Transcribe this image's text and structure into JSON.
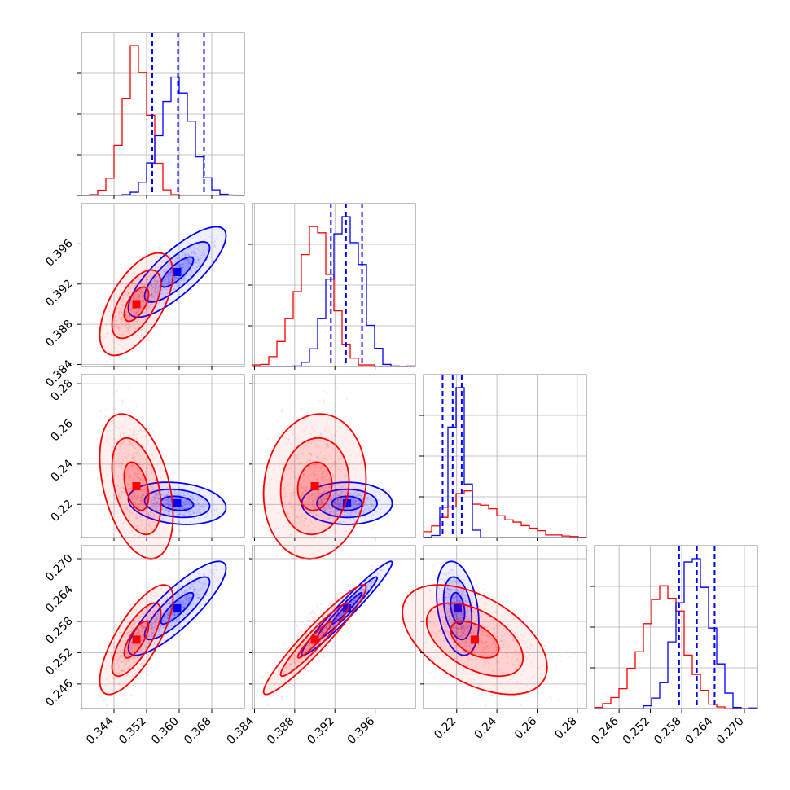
{
  "chart_data": {
    "type": "corner",
    "parameters": 4,
    "colors": {
      "series_a": "#ff0000",
      "series_b": "#0000ff",
      "grid": "#b0b0b0",
      "frame": "#808080"
    },
    "grid": true,
    "series": [
      {
        "color": "#0000ff",
        "means": [
          0.3595,
          0.3932,
          0.2205,
          0.2605
        ],
        "sigmas": [
          0.004,
          0.0015,
          0.0035,
          0.003
        ]
      },
      {
        "color": "#ff0000",
        "means": [
          0.3495,
          0.39,
          0.229,
          0.2545
        ],
        "sigmas": [
          0.003,
          0.0017,
          0.012,
          0.0035
        ]
      }
    ],
    "quantile_lines": {
      "color": "#0000ff",
      "style": "dashed",
      "values": [
        [
          0.3534,
          0.3597,
          0.3661
        ],
        [
          0.3916,
          0.3931,
          0.3947
        ],
        [
          0.213,
          0.218,
          0.2225
        ],
        [
          0.2575,
          0.2609,
          0.2643
        ]
      ]
    },
    "axis_ranges": [
      [
        0.336,
        0.376
      ],
      [
        0.3838,
        0.4
      ],
      [
        0.2035,
        0.2845
      ],
      [
        0.2413,
        0.2725
      ]
    ],
    "x_ticks": [
      {
        "values": [
          0.344,
          0.352,
          0.36,
          0.368
        ],
        "labels": [
          "0.344",
          "0.352",
          "0.360",
          "0.368"
        ]
      },
      {
        "values": [
          0.384,
          0.388,
          0.392,
          0.396
        ],
        "labels": [
          "0.384",
          "0.388",
          "0.392",
          "0.396"
        ]
      },
      {
        "values": [
          0.22,
          0.24,
          0.26,
          0.28
        ],
        "labels": [
          "0.22",
          "0.24",
          "0.26",
          "0.28"
        ]
      },
      {
        "values": [
          0.246,
          0.252,
          0.258,
          0.264,
          0.27
        ],
        "labels": [
          "0.246",
          "0.252",
          "0.258",
          "0.264",
          "0.270"
        ]
      }
    ],
    "y_ticks": [
      {
        "values": [],
        "labels": []
      },
      {
        "values": [
          0.384,
          0.388,
          0.392,
          0.396
        ],
        "labels": [
          "0.384",
          "0.388",
          "0.392",
          "0.396"
        ]
      },
      {
        "values": [
          0.22,
          0.24,
          0.26,
          0.28
        ],
        "labels": [
          "0.22",
          "0.24",
          "0.26",
          "0.28"
        ]
      },
      {
        "values": [
          0.246,
          0.252,
          0.258,
          0.264,
          0.27
        ],
        "labels": [
          "0.246",
          "0.252",
          "0.258",
          "0.264",
          "0.270"
        ]
      }
    ],
    "histogram_bins": 20,
    "contour_levels_sigma": [
      1,
      2,
      3
    ],
    "title": "",
    "xlabel": "",
    "ylabel": ""
  }
}
